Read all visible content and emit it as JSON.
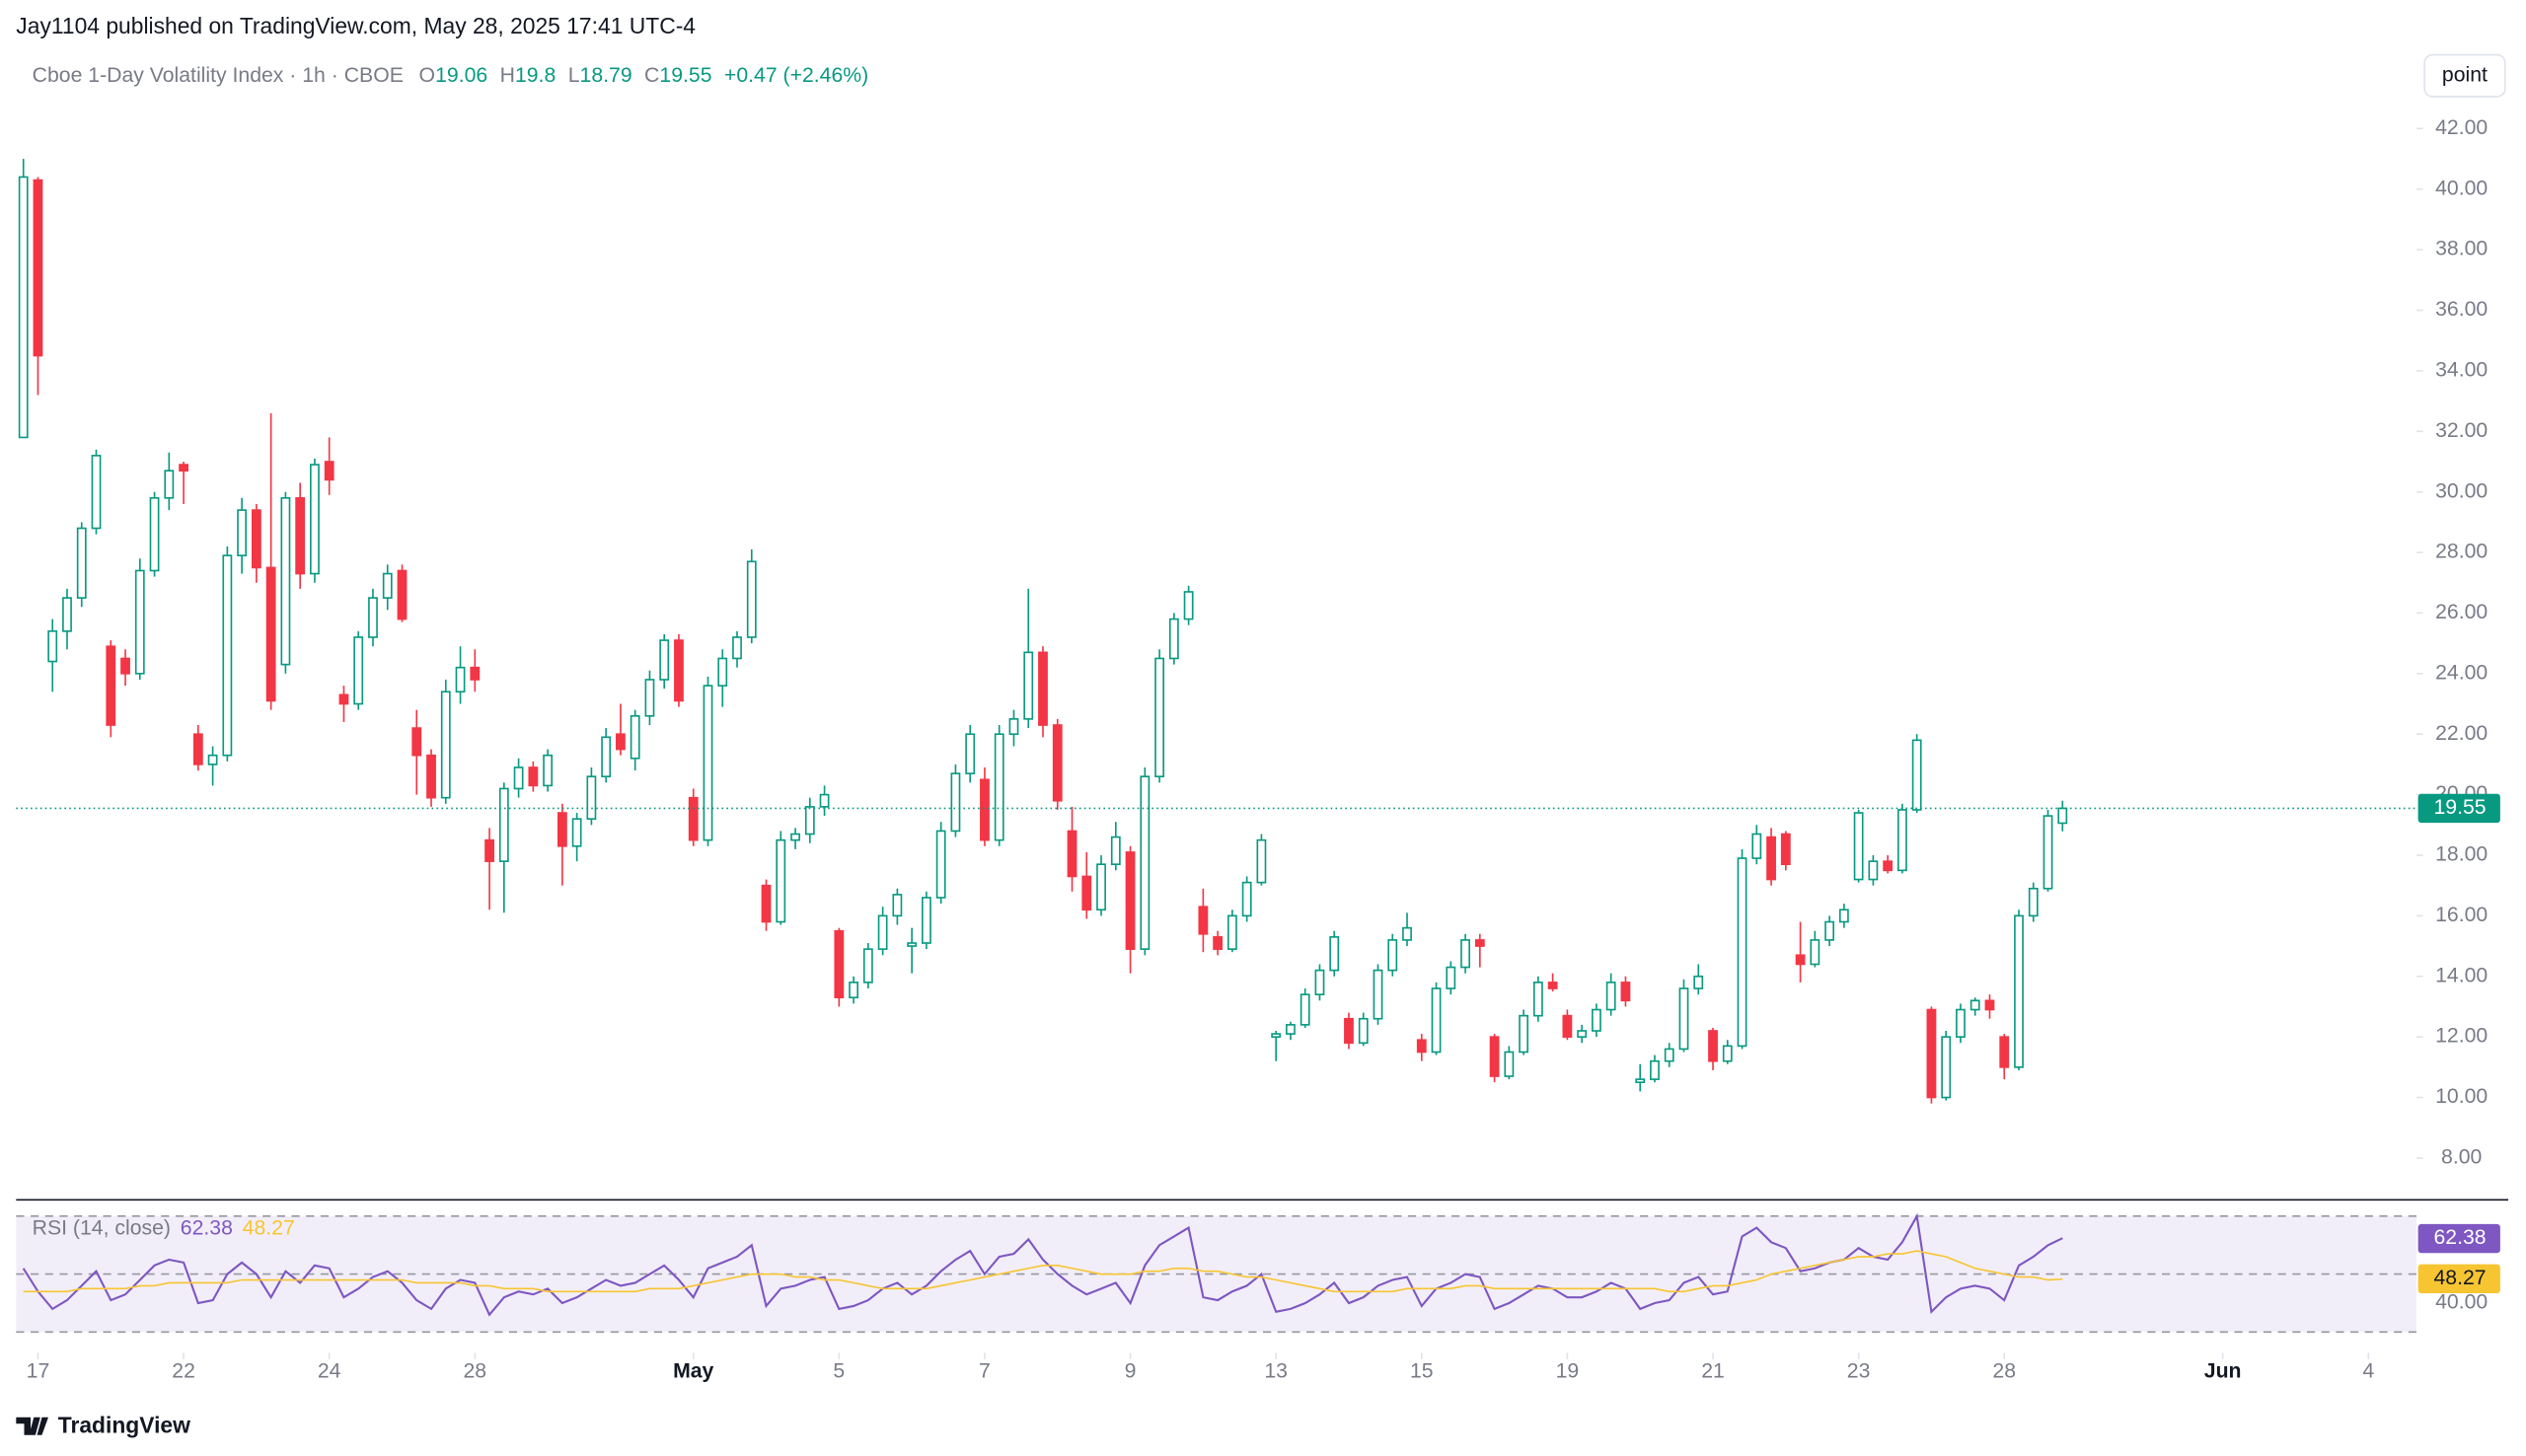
{
  "header": {
    "published": "Jay1104 published on TradingView.com, May 28, 2025 17:41 UTC-4",
    "button": "point"
  },
  "footer": {
    "logo": "TradingView"
  },
  "chart_data": [
    {
      "type": "candlestick",
      "title": "Cboe 1-Day Volatility Index · 1h · CBOE",
      "ohlc_labels": [
        "O",
        "H",
        "L",
        "C"
      ],
      "change": "+0.47 (+2.46%)",
      "up_color": "#089981",
      "down_color": "#f23645",
      "open": [
        31.8,
        40.3,
        24.4,
        25.4,
        26.5,
        28.8,
        24.9,
        24.5,
        24.0,
        27.4,
        29.8,
        30.9,
        22.0,
        21.0,
        21.3,
        27.9,
        29.4,
        27.5,
        24.3,
        29.8,
        27.3,
        31.0,
        23.3,
        23.0,
        25.2,
        26.5,
        27.4,
        22.2,
        21.3,
        19.9,
        23.4,
        24.2,
        18.5,
        17.8,
        20.2,
        20.9,
        20.3,
        19.4,
        18.3,
        19.2,
        20.6,
        22.0,
        21.2,
        22.6,
        23.8,
        25.1,
        19.9,
        18.5,
        23.6,
        24.5,
        25.2,
        17.0,
        15.8,
        18.5,
        18.7,
        19.6,
        15.5,
        13.3,
        13.8,
        14.9,
        16.0,
        15.0,
        15.1,
        16.6,
        18.8,
        20.7,
        20.5,
        18.5,
        22.0,
        22.5,
        24.7,
        22.3,
        18.8,
        17.3,
        16.2,
        17.7,
        18.1,
        14.9,
        20.6,
        24.5,
        25.8,
        16.3,
        15.3,
        14.9,
        16.0,
        17.1,
        12.0,
        12.1,
        12.4,
        13.4,
        14.2,
        12.6,
        11.8,
        12.6,
        14.2,
        15.2,
        11.9,
        11.5,
        13.6,
        14.3,
        15.2,
        12.0,
        10.7,
        11.5,
        12.7,
        13.8,
        12.7,
        12.0,
        12.2,
        12.9,
        13.8,
        10.5,
        10.6,
        11.2,
        11.6,
        13.6,
        12.2,
        11.2,
        11.7,
        17.9,
        18.6,
        18.7,
        14.7,
        14.4,
        15.2,
        15.8,
        17.2,
        17.2,
        17.8,
        17.5,
        19.5,
        12.9,
        10.0,
        12.0,
        12.9,
        13.2,
        12.0,
        11.0,
        16.0,
        16.9,
        19.06
      ],
      "high": [
        41.0,
        40.4,
        25.8,
        26.8,
        29.0,
        31.4,
        25.1,
        24.8,
        27.8,
        30.0,
        31.3,
        31.0,
        22.3,
        21.6,
        28.2,
        29.8,
        29.6,
        32.6,
        30.0,
        30.3,
        31.1,
        31.8,
        23.6,
        25.4,
        26.8,
        27.6,
        27.6,
        22.8,
        21.5,
        23.8,
        24.9,
        24.8,
        18.9,
        20.4,
        21.2,
        21.1,
        21.5,
        19.7,
        19.4,
        20.9,
        22.2,
        23.0,
        22.8,
        24.1,
        25.3,
        25.3,
        20.2,
        23.9,
        24.8,
        25.4,
        28.1,
        17.2,
        18.8,
        18.9,
        19.9,
        20.3,
        15.6,
        14.0,
        15.1,
        16.3,
        16.9,
        15.6,
        16.8,
        19.1,
        21.0,
        22.3,
        20.9,
        22.3,
        22.8,
        26.8,
        24.9,
        22.5,
        19.6,
        18.1,
        18.0,
        19.1,
        18.3,
        20.9,
        24.8,
        26.0,
        26.9,
        16.9,
        15.5,
        16.2,
        17.3,
        18.7,
        12.2,
        12.5,
        13.6,
        14.4,
        15.5,
        12.8,
        12.8,
        14.4,
        15.4,
        16.1,
        12.1,
        13.8,
        14.5,
        15.4,
        15.4,
        12.1,
        11.7,
        12.9,
        14.0,
        14.1,
        12.9,
        12.4,
        13.1,
        14.1,
        14.0,
        11.1,
        11.4,
        11.8,
        13.9,
        14.4,
        12.3,
        11.9,
        18.2,
        19.0,
        18.9,
        18.8,
        15.8,
        15.5,
        16.0,
        16.4,
        19.5,
        18.0,
        18.0,
        19.7,
        22.0,
        13.0,
        12.2,
        13.1,
        13.3,
        13.4,
        12.1,
        16.2,
        17.1,
        19.5,
        19.8
      ],
      "low": [
        31.8,
        33.2,
        23.4,
        24.8,
        26.2,
        28.6,
        21.9,
        23.6,
        23.8,
        27.2,
        29.4,
        29.6,
        20.8,
        20.3,
        21.1,
        27.3,
        27.0,
        22.8,
        24.0,
        26.8,
        27.0,
        29.9,
        22.4,
        22.8,
        24.9,
        26.1,
        25.7,
        20.0,
        19.6,
        19.7,
        23.0,
        23.4,
        16.2,
        16.1,
        19.9,
        20.1,
        20.1,
        17.0,
        17.8,
        19.0,
        20.4,
        21.3,
        20.8,
        22.3,
        23.5,
        22.9,
        18.3,
        18.3,
        22.9,
        24.2,
        25.0,
        15.5,
        15.7,
        18.2,
        18.4,
        19.3,
        13.0,
        13.1,
        13.6,
        14.7,
        15.7,
        14.1,
        14.9,
        16.4,
        18.6,
        20.4,
        18.3,
        18.3,
        21.6,
        22.2,
        21.9,
        19.5,
        16.8,
        15.9,
        16.0,
        17.5,
        14.1,
        14.7,
        20.4,
        24.3,
        25.6,
        14.8,
        14.7,
        14.8,
        15.8,
        17.0,
        11.2,
        11.9,
        12.3,
        13.2,
        14.0,
        11.6,
        11.7,
        12.4,
        14.0,
        15.0,
        11.2,
        11.4,
        13.4,
        14.1,
        14.3,
        10.5,
        10.6,
        11.4,
        12.5,
        13.5,
        11.9,
        11.8,
        12.0,
        12.7,
        13.0,
        10.2,
        10.5,
        11.0,
        11.5,
        13.4,
        10.9,
        11.1,
        11.6,
        17.7,
        17.0,
        17.5,
        13.8,
        14.3,
        15.0,
        15.6,
        17.1,
        17.0,
        17.4,
        17.4,
        19.4,
        9.8,
        9.9,
        11.8,
        12.7,
        12.6,
        10.6,
        10.9,
        15.8,
        16.8,
        18.79
      ],
      "close": [
        40.4,
        34.5,
        25.4,
        26.5,
        28.8,
        31.2,
        22.3,
        24.0,
        27.4,
        29.8,
        30.7,
        30.7,
        21.0,
        21.3,
        27.9,
        29.4,
        27.5,
        23.1,
        29.8,
        27.3,
        30.9,
        30.4,
        23.0,
        25.2,
        26.5,
        27.3,
        25.8,
        21.3,
        19.9,
        23.4,
        24.2,
        23.8,
        17.8,
        20.2,
        20.9,
        20.3,
        21.3,
        18.3,
        19.2,
        20.6,
        21.9,
        21.5,
        22.6,
        23.8,
        25.1,
        23.1,
        18.5,
        23.6,
        24.5,
        25.2,
        27.7,
        15.8,
        18.5,
        18.7,
        19.6,
        20.0,
        13.3,
        13.8,
        14.9,
        16.0,
        16.7,
        15.1,
        16.6,
        18.8,
        20.7,
        22.0,
        18.5,
        22.0,
        22.5,
        24.7,
        22.3,
        19.8,
        17.3,
        16.2,
        17.7,
        18.6,
        14.9,
        20.6,
        24.5,
        25.8,
        26.7,
        15.4,
        14.9,
        16.0,
        17.1,
        18.5,
        12.1,
        12.4,
        13.4,
        14.2,
        15.3,
        11.8,
        12.6,
        14.2,
        15.2,
        15.6,
        11.5,
        13.6,
        14.3,
        15.2,
        15.0,
        10.7,
        11.5,
        12.7,
        13.8,
        13.6,
        12.0,
        12.2,
        12.9,
        13.8,
        13.2,
        10.6,
        11.2,
        11.6,
        13.6,
        14.0,
        11.2,
        11.7,
        17.9,
        18.7,
        17.2,
        17.7,
        14.4,
        15.2,
        15.8,
        16.2,
        19.4,
        17.8,
        17.5,
        19.5,
        21.8,
        10.0,
        12.0,
        12.9,
        13.2,
        12.9,
        11.0,
        16.0,
        16.9,
        19.3,
        19.55
      ],
      "xlim": [
        -0.5,
        164.3
      ],
      "ylim": [
        6.67,
        44.65
      ],
      "xticks": [
        {
          "value": 1,
          "label": "17"
        },
        {
          "value": 11,
          "label": "22"
        },
        {
          "value": 21,
          "label": "24"
        },
        {
          "value": 31,
          "label": "28"
        },
        {
          "value": 46,
          "label": "May"
        },
        {
          "value": 56,
          "label": "5"
        },
        {
          "value": 66,
          "label": "7"
        },
        {
          "value": 76,
          "label": "9"
        },
        {
          "value": 86,
          "label": "13"
        },
        {
          "value": 96,
          "label": "15"
        },
        {
          "value": 106,
          "label": "19"
        },
        {
          "value": 116,
          "label": "21"
        },
        {
          "value": 126,
          "label": "23"
        },
        {
          "value": 136,
          "label": "28"
        },
        {
          "value": 151,
          "label": "Jun"
        },
        {
          "value": 161,
          "label": "4"
        }
      ],
      "yticks": [
        {
          "value": 8,
          "label": "8.00"
        },
        {
          "value": 10,
          "label": "10.00"
        },
        {
          "value": 12,
          "label": "12.00"
        },
        {
          "value": 14,
          "label": "14.00"
        },
        {
          "value": 16,
          "label": "16.00"
        },
        {
          "value": 18,
          "label": "18.00"
        },
        {
          "value": 20,
          "label": "20.00"
        },
        {
          "value": 22,
          "label": "22.00"
        },
        {
          "value": 24,
          "label": "24.00"
        },
        {
          "value": 26,
          "label": "26.00"
        },
        {
          "value": 28,
          "label": "28.00"
        },
        {
          "value": 30,
          "label": "30.00"
        },
        {
          "value": 32,
          "label": "32.00"
        },
        {
          "value": 34,
          "label": "34.00"
        },
        {
          "value": 36,
          "label": "36.00"
        },
        {
          "value": 38,
          "label": "38.00"
        },
        {
          "value": 40,
          "label": "40.00"
        },
        {
          "value": 42,
          "label": "42.00"
        }
      ]
    },
    {
      "type": "line",
      "title": "RSI (14, close)",
      "band_color": "#7e57c2",
      "levels": [
        70,
        50,
        30
      ],
      "series": [
        {
          "color": "#7e57c2",
          "values": [
            52,
            44,
            38,
            41,
            46,
            51,
            41,
            43,
            48,
            53,
            55,
            54,
            40,
            41,
            50,
            54,
            50,
            42,
            51,
            47,
            53,
            52,
            42,
            45,
            49,
            51,
            47,
            41,
            38,
            45,
            48,
            47,
            36,
            42,
            44,
            43,
            45,
            40,
            42,
            45,
            48,
            46,
            47,
            50,
            53,
            48,
            42,
            52,
            54,
            56,
            60,
            39,
            45,
            46,
            48,
            49,
            38,
            39,
            41,
            45,
            47,
            43,
            46,
            51,
            55,
            58,
            50,
            56,
            57,
            62,
            55,
            50,
            46,
            43,
            45,
            47,
            40,
            53,
            60,
            63,
            66,
            42,
            41,
            44,
            46,
            50,
            37,
            38,
            40,
            43,
            47,
            40,
            42,
            46,
            48,
            49,
            39,
            45,
            47,
            50,
            49,
            38,
            40,
            43,
            46,
            45,
            42,
            42,
            44,
            47,
            45,
            38,
            40,
            41,
            47,
            49,
            43,
            44,
            63,
            66,
            61,
            59,
            51,
            52,
            54,
            55,
            59,
            56,
            55,
            61,
            70,
            37,
            42,
            45,
            46,
            45,
            41,
            53,
            56,
            60,
            62.38
          ]
        },
        {
          "color": "#f7c531",
          "values": [
            44,
            44,
            44,
            44,
            45,
            45,
            45,
            45,
            46,
            46,
            47,
            47,
            47,
            47,
            47,
            48,
            48,
            48,
            48,
            48,
            48,
            48,
            48,
            48,
            48,
            48,
            48,
            47,
            47,
            47,
            47,
            46,
            46,
            45,
            45,
            45,
            44,
            44,
            44,
            44,
            44,
            44,
            44,
            45,
            45,
            45,
            46,
            47,
            48,
            49,
            50,
            50,
            50,
            49,
            49,
            48,
            48,
            47,
            46,
            45,
            45,
            45,
            45,
            46,
            47,
            48,
            49,
            50,
            51,
            52,
            53,
            53,
            52,
            51,
            50,
            50,
            50,
            51,
            51,
            52,
            52,
            51,
            51,
            50,
            49,
            49,
            48,
            47,
            46,
            45,
            44,
            44,
            44,
            44,
            44,
            45,
            45,
            45,
            45,
            46,
            46,
            45,
            45,
            45,
            45,
            45,
            45,
            45,
            45,
            45,
            45,
            45,
            45,
            44,
            44,
            45,
            46,
            46,
            47,
            48,
            50,
            51,
            52,
            53,
            54,
            55,
            56,
            56,
            57,
            57,
            58,
            57,
            56,
            54,
            52,
            51,
            50,
            49,
            49,
            48,
            48.27
          ]
        }
      ],
      "ylim": [
        22.8,
        75.6
      ],
      "yticks": [
        {
          "value": 40,
          "label": "40.00"
        }
      ]
    }
  ]
}
